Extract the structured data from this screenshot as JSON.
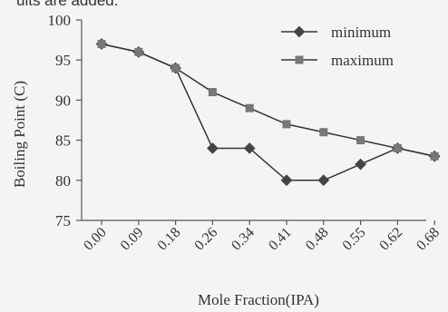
{
  "top_text": "ults are added.",
  "chart_data": {
    "type": "line",
    "ylabel": "Boiling Point (C)",
    "xlabel": "Mole Fraction(IPA)",
    "ylim": [
      75,
      100
    ],
    "yticks": [
      75,
      80,
      85,
      90,
      95,
      100
    ],
    "x": [
      "0.00",
      "0.09",
      "0.18",
      "0.26",
      "0.34",
      "0.41",
      "0.48",
      "0.55",
      "0.62",
      "0.68"
    ],
    "series": [
      {
        "name": "minimum",
        "marker": "diamond",
        "values": [
          97,
          96,
          94,
          84,
          84,
          80,
          80,
          82,
          84,
          83
        ]
      },
      {
        "name": "maximum",
        "marker": "square",
        "values": [
          97,
          96,
          94,
          91,
          89,
          87,
          86,
          85,
          84,
          83
        ]
      }
    ],
    "legend": "top-right",
    "grid": false,
    "colors": {
      "line": "#333333",
      "axis": "#555555"
    }
  }
}
